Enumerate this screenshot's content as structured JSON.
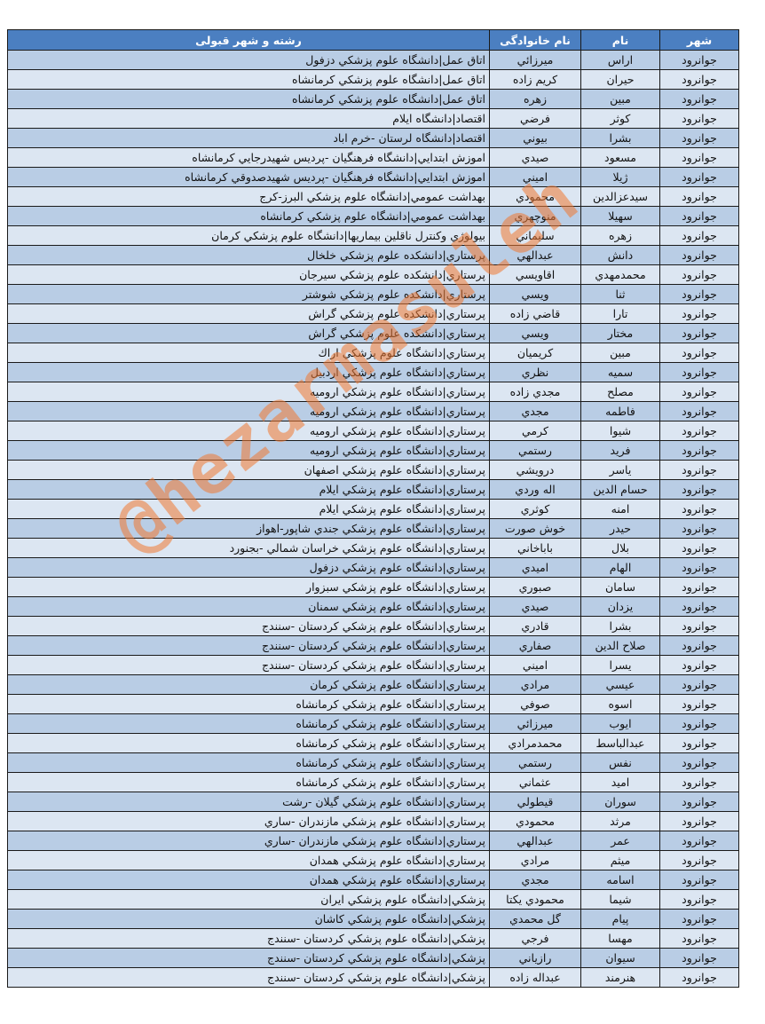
{
  "header": {
    "city": "شهر",
    "name": "نام",
    "family": "نام خانوادگی",
    "major": "رشته و شهر قبولی"
  },
  "watermark": "@hezarmasuleh",
  "colors": {
    "header": "#4b7fc1",
    "row_dark": "#b9cde5",
    "row_light": "#dce6f2",
    "watermark": "#f07832"
  },
  "rows": [
    [
      "جوانرود",
      "اراس",
      "ميرزائي",
      "اتاق عمل|دانشگاه علوم پزشكي دزفول"
    ],
    [
      "جوانرود",
      "حيران",
      "كريم زاده",
      "اتاق عمل|دانشگاه علوم پزشكي كرمانشاه"
    ],
    [
      "جوانرود",
      "مبين",
      "زهره",
      "اتاق عمل|دانشگاه علوم پزشكي كرمانشاه"
    ],
    [
      "جوانرود",
      "كوثر",
      "فرضي",
      "اقتصاد|دانشگاه ايلام"
    ],
    [
      "جوانرود",
      "بشرا",
      "بيوني",
      "اقتصاد|دانشگاه لرستان -خرم اباد"
    ],
    [
      "جوانرود",
      "مسعود",
      "صيدي",
      "اموزش ابتدايي|دانشگاه فرهنگيان -پرديس شهيدرجايي كرمانشاه"
    ],
    [
      "جوانرود",
      "ژيلا",
      "اميني",
      "اموزش ابتدايي|دانشگاه فرهنگيان -پرديس شهيدصدوقي كرمانشاه"
    ],
    [
      "جوانرود",
      "سيدعزالدين",
      "محمودي",
      "بهداشت عمومي|دانشگاه علوم پزشكي البرز-كرج"
    ],
    [
      "جوانرود",
      "سهيلا",
      "منوچهري",
      "بهداشت عمومي|دانشگاه علوم پزشكي كرمانشاه"
    ],
    [
      "جوانرود",
      "زهره",
      "سليماني",
      "بيولوژي وكنترل ناقلين بيماريها|دانشگاه علوم پزشكي كرمان"
    ],
    [
      "جوانرود",
      "دانش",
      "عبدالهي",
      "پرستاري|دانشكده علوم پزشكي خلخال"
    ],
    [
      "جوانرود",
      "محمدمهدي",
      "اقاويسي",
      "پرستاري|دانشكده علوم پزشكي سيرجان"
    ],
    [
      "جوانرود",
      "ثنا",
      "ويسي",
      "پرستاري|دانشكده علوم پزشكي شوشتر"
    ],
    [
      "جوانرود",
      "تارا",
      "قاضي زاده",
      "پرستاري|دانشكده علوم پزشكي گراش"
    ],
    [
      "جوانرود",
      "مختار",
      "ويسي",
      "پرستاري|دانشكده علوم پزشكي گراش"
    ],
    [
      "جوانرود",
      "مبين",
      "كريميان",
      "پرستاري|دانشگاه علوم پزشكي اراك"
    ],
    [
      "جوانرود",
      "سميه",
      "نظري",
      "پرستاري|دانشگاه علوم پزشكي اردبيل"
    ],
    [
      "جوانرود",
      "مصلح",
      "مجدي زاده",
      "پرستاري|دانشگاه علوم پزشكي اروميه"
    ],
    [
      "جوانرود",
      "فاطمه",
      "مجدي",
      "پرستاري|دانشگاه علوم پزشكي اروميه"
    ],
    [
      "جوانرود",
      "شيوا",
      "كرمي",
      "پرستاري|دانشگاه علوم پزشكي اروميه"
    ],
    [
      "جوانرود",
      "فريد",
      "رستمي",
      "پرستاري|دانشگاه علوم پزشكي اروميه"
    ],
    [
      "جوانرود",
      "ياسر",
      "درويشي",
      "پرستاري|دانشگاه علوم پزشكي اصفهان"
    ],
    [
      "جوانرود",
      "حسام الدين",
      "اله وردي",
      "پرستاري|دانشگاه علوم پزشكي ايلام"
    ],
    [
      "جوانرود",
      "امنه",
      "كوثري",
      "پرستاري|دانشگاه علوم پزشكي ايلام"
    ],
    [
      "جوانرود",
      "حيدر",
      "خوش صورت",
      "پرستاري|دانشگاه علوم پزشكي جندي شاپور-اهواز"
    ],
    [
      "جوانرود",
      "بلال",
      "باباخاني",
      "پرستاري|دانشگاه علوم پزشكي خراسان شمالي -بجنورد"
    ],
    [
      "جوانرود",
      "الهام",
      "اميدي",
      "پرستاري|دانشگاه علوم پزشكي دزفول"
    ],
    [
      "جوانرود",
      "سامان",
      "صبوري",
      "پرستاري|دانشگاه علوم پزشكي سبزوار"
    ],
    [
      "جوانرود",
      "يزدان",
      "صيدي",
      "پرستاري|دانشگاه علوم پزشكي سمنان"
    ],
    [
      "جوانرود",
      "بشرا",
      "قادري",
      "پرستاري|دانشگاه علوم پزشكي كردستان -سنندج"
    ],
    [
      "جوانرود",
      "صلاح الدين",
      "صفاري",
      "پرستاري|دانشگاه علوم پزشكي كردستان -سنندج"
    ],
    [
      "جوانرود",
      "يسرا",
      "اميني",
      "پرستاري|دانشگاه علوم پزشكي كردستان -سنندج"
    ],
    [
      "جوانرود",
      "عيسي",
      "مرادي",
      "پرستاري|دانشگاه علوم پزشكي كرمان"
    ],
    [
      "جوانرود",
      "اسوه",
      "صوفي",
      "پرستاري|دانشگاه علوم پزشكي كرمانشاه"
    ],
    [
      "جوانرود",
      "ايوب",
      "ميرزائي",
      "پرستاري|دانشگاه علوم پزشكي كرمانشاه"
    ],
    [
      "جوانرود",
      "عبدالباسط",
      "محمدمرادي",
      "پرستاري|دانشگاه علوم پزشكي كرمانشاه"
    ],
    [
      "جوانرود",
      "نفس",
      "رستمي",
      "پرستاري|دانشگاه علوم پزشكي كرمانشاه"
    ],
    [
      "جوانرود",
      "اميد",
      "عثماني",
      "پرستاري|دانشگاه علوم پزشكي كرمانشاه"
    ],
    [
      "جوانرود",
      "سوران",
      "قيطولي",
      "پرستاري|دانشگاه علوم پزشكي گيلان -رشت"
    ],
    [
      "جوانرود",
      "مرثد",
      "محمودي",
      "پرستاري|دانشگاه علوم پزشكي مازندران -ساري"
    ],
    [
      "جوانرود",
      "عمر",
      "عبدالهي",
      "پرستاري|دانشگاه علوم پزشكي مازندران -ساري"
    ],
    [
      "جوانرود",
      "ميثم",
      "مرادي",
      "پرستاري|دانشگاه علوم پزشكي همدان"
    ],
    [
      "جوانرود",
      "اسامه",
      "مجدي",
      "پرستاري|دانشگاه علوم پزشكي همدان"
    ],
    [
      "جوانرود",
      "شيما",
      "محمودي يكتا",
      "پزشكي|دانشگاه علوم پزشكي ايران"
    ],
    [
      "جوانرود",
      "پيام",
      "گل محمدي",
      "پزشكي|دانشگاه علوم پزشكي كاشان"
    ],
    [
      "جوانرود",
      "مهسا",
      "فرجي",
      "پزشكي|دانشگاه علوم پزشكي كردستان -سنندج"
    ],
    [
      "جوانرود",
      "سيوان",
      "رازياني",
      "پزشكي|دانشگاه علوم پزشكي كردستان -سنندج"
    ],
    [
      "جوانرود",
      "هنرمند",
      "عبداله زاده",
      "پزشكي|دانشگاه علوم پزشكي كردستان -سنندج"
    ]
  ]
}
